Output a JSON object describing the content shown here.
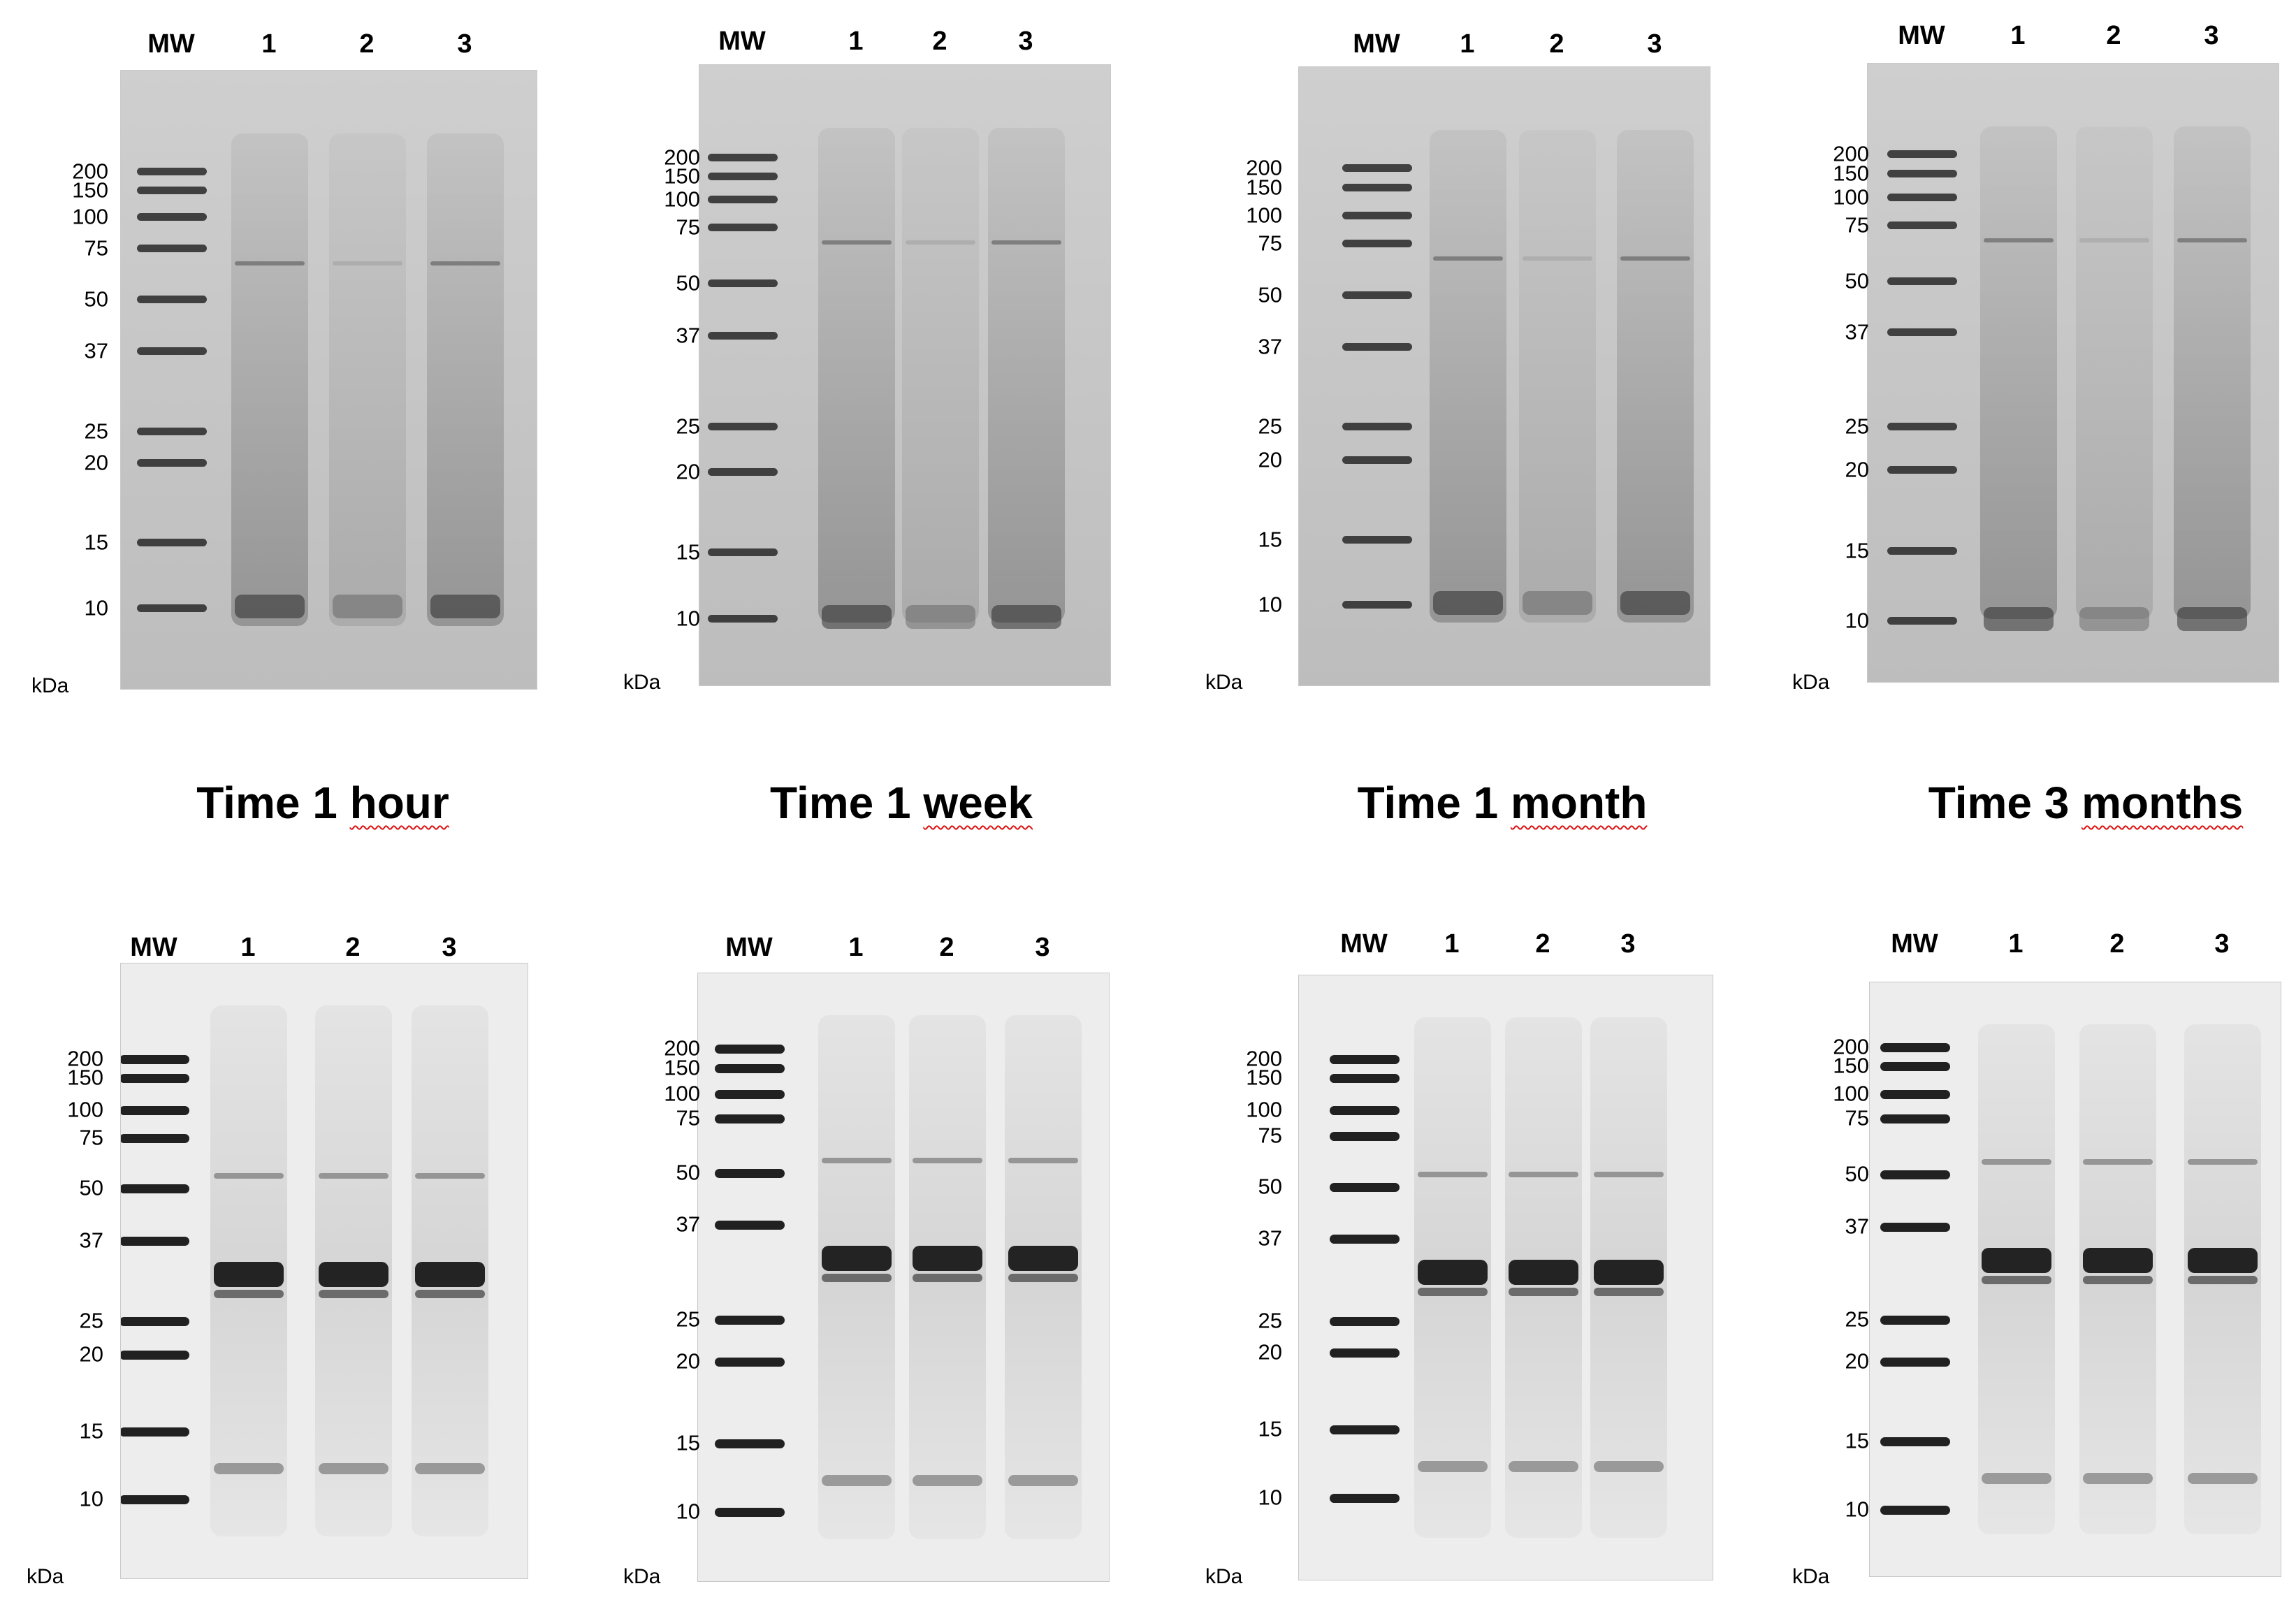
{
  "lane_labels": [
    "MW",
    "1",
    "2",
    "3"
  ],
  "mw_markers": [
    "200",
    "150",
    "100",
    "75",
    "50",
    "37",
    "25",
    "20",
    "15",
    "10"
  ],
  "unit_label": "kDa",
  "time_titles": [
    {
      "prefix": "Time 1",
      "unit": "hour"
    },
    {
      "prefix": "Time 1",
      "unit": "week"
    },
    {
      "prefix": "Time 1",
      "unit": "month"
    },
    {
      "prefix": "Time 3",
      "unit": "months"
    }
  ],
  "gel_types": {
    "top": "coomassie",
    "bottom": "western"
  },
  "colors": {
    "title_underline": "#dd1111"
  }
}
